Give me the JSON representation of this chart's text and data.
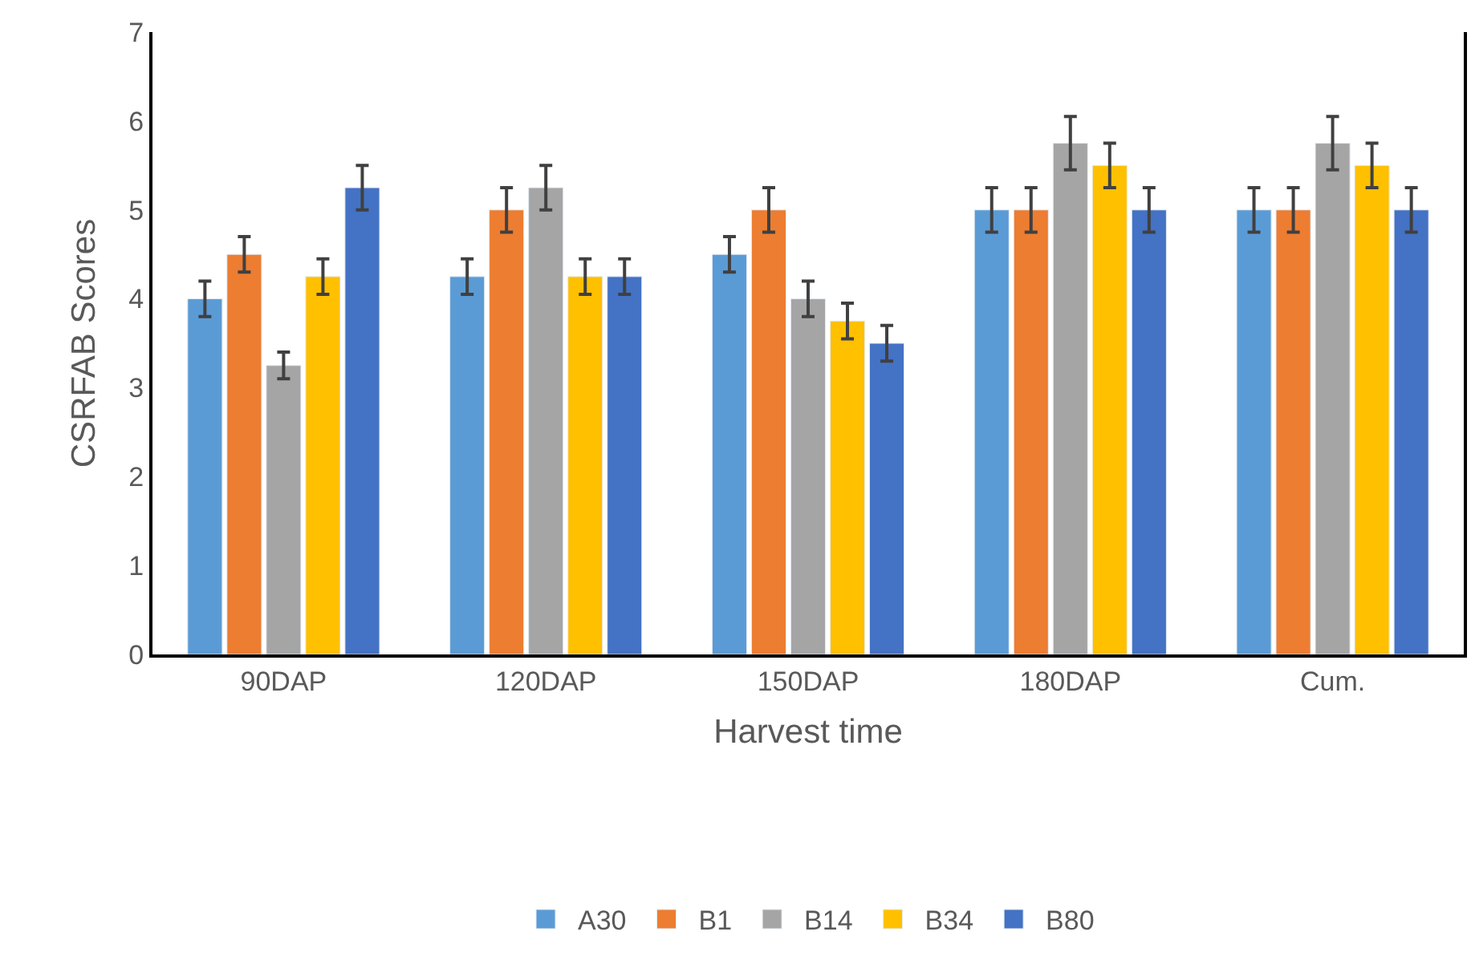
{
  "chart_data": {
    "type": "bar",
    "xlabel": "Harvest time",
    "ylabel": "CSRFAB Scores",
    "categories": [
      "90DAP",
      "120DAP",
      "150DAP",
      "180DAP",
      "Cum."
    ],
    "series": [
      {
        "name": "A30",
        "color": "#5b9bd5",
        "values": [
          4.0,
          4.25,
          4.5,
          5.0,
          5.0
        ],
        "errors": [
          0.2,
          0.2,
          0.2,
          0.25,
          0.25
        ]
      },
      {
        "name": "B1",
        "color": "#ed7d31",
        "values": [
          4.5,
          5.0,
          5.0,
          5.0,
          5.0
        ],
        "errors": [
          0.2,
          0.25,
          0.25,
          0.25,
          0.25
        ]
      },
      {
        "name": "B14",
        "color": "#a5a5a5",
        "values": [
          3.25,
          5.25,
          4.0,
          5.75,
          5.75
        ],
        "errors": [
          0.15,
          0.25,
          0.2,
          0.3,
          0.3
        ]
      },
      {
        "name": "B34",
        "color": "#ffc000",
        "values": [
          4.25,
          4.25,
          3.75,
          5.5,
          5.5
        ],
        "errors": [
          0.2,
          0.2,
          0.2,
          0.25,
          0.25
        ]
      },
      {
        "name": "B80",
        "color": "#4472c4",
        "values": [
          5.25,
          4.25,
          3.5,
          5.0,
          5.0
        ],
        "errors": [
          0.25,
          0.2,
          0.2,
          0.25,
          0.25
        ]
      }
    ],
    "ylim": [
      0,
      7
    ],
    "yticks": [
      0,
      1,
      2,
      3,
      4,
      5,
      6,
      7
    ],
    "legend": "bottom"
  }
}
